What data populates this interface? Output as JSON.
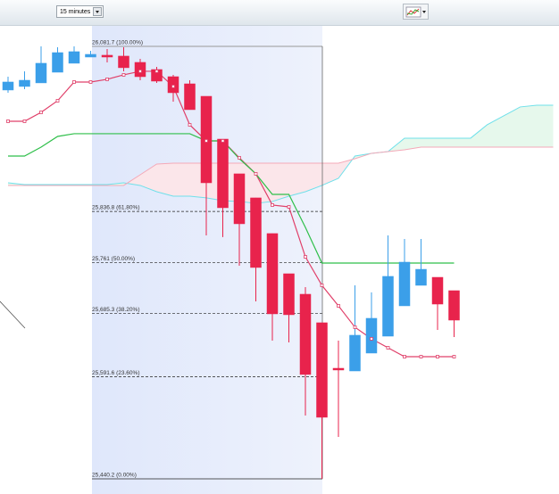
{
  "toolbar": {
    "interval": "15 minutes"
  },
  "chart_data": {
    "type": "candlestick",
    "ylim": [
      25417.7,
      26113.4
    ],
    "up_color": "#3b9fe9",
    "down_color": "#e8234c",
    "candles": {
      "open": [
        26016.9,
        26022.2,
        26027.5,
        26043.3,
        26056.6,
        26065.8,
        26068.5,
        26067.2,
        26057.9,
        26047.3,
        26036.7,
        26026.1,
        26007.6,
        25944.1,
        25892.6,
        25856.9,
        25804.0,
        25744.4,
        25714.0,
        25671.7,
        25604.2,
        25600.2,
        25626.7,
        25651.8,
        25696.8,
        25727.2,
        25739.1,
        25719.3
      ],
      "high": [
        26036.7,
        26044.7,
        26081.7,
        26080.4,
        26081.7,
        26075.1,
        26077.7,
        26080.4,
        26063.2,
        26051.3,
        26039.4,
        26031.4,
        26007.6,
        25944.1,
        25892.6,
        25856.9,
        25804.0,
        25744.4,
        25724.6,
        25671.7,
        25645.2,
        25727.2,
        25716.7,
        25801.3,
        25796.0,
        25796.0,
        25739.1,
        25719.3
      ],
      "low": [
        26012.9,
        26018.2,
        26027.5,
        26043.3,
        26056.6,
        26065.8,
        26057.9,
        26044.7,
        26031.4,
        26027.5,
        25999.7,
        25987.8,
        25801.3,
        25798.7,
        25756.3,
        25703.4,
        25645.2,
        25642.6,
        25534.1,
        25440.2,
        25502.4,
        25600.2,
        25626.7,
        25651.8,
        25696.8,
        25727.2,
        25661.1,
        25650.5
      ],
      "close": [
        26028.8,
        26031.4,
        26056.6,
        26072.4,
        26073.8,
        26069.8,
        26065.8,
        26050.0,
        26036.7,
        26030.1,
        26012.9,
        25987.8,
        25879.3,
        25842.3,
        25818.5,
        25753.7,
        25684.9,
        25683.6,
        25595.0,
        25531.5,
        25601.6,
        25653.2,
        25678.3,
        25740.5,
        25761.6,
        25751.0,
        25699.4,
        25675.6
      ]
    },
    "lines": [
      {
        "color": "#e0406a",
        "markers": true,
        "values": [
          25970.6,
          25970.6,
          25983.8,
          26001.0,
          26028.8,
          26028.8,
          26032.8,
          26039.4,
          26044.7,
          26044.7,
          26022.2,
          25965.3,
          25941.5,
          25941.5,
          25916.4,
          25892.6,
          25846.3,
          25843.6,
          25769.5,
          25727.2,
          25696.8,
          25665.1,
          25647.9,
          25634.6,
          25621.4,
          25621.4,
          25621.4,
          25621.4
        ]
      },
      {
        "color": "#2fbf4a",
        "markers": false,
        "values": [
          25919.0,
          25919.0,
          25932.2,
          25948.1,
          25952.1,
          25952.1,
          25952.1,
          25952.1,
          25952.1,
          25952.1,
          25952.1,
          25952.1,
          25941.5,
          25941.5,
          25915.0,
          25892.6,
          25862.1,
          25862.1,
          25813.2,
          25760.3,
          25760.3,
          25760.3,
          25760.3,
          25760.3,
          25760.3,
          25760.3,
          25760.3,
          25760.3
        ]
      }
    ],
    "cloud": {
      "span_a_color": "#6fe0ea",
      "span_b_color": "#f4a9b8",
      "up_fill": "#e6f8ec",
      "down_fill": "#fbe6ea",
      "span_a": [
        25879.3,
        25876.7,
        25876.7,
        25876.7,
        25876.7,
        25876.7,
        25876.7,
        25879.3,
        25875.4,
        25866.1,
        25859.5,
        25859.5,
        25856.9,
        25852.9,
        25851.6,
        25848.9,
        25851.6,
        25859.5,
        25866.1,
        25875.4,
        25885.9,
        25919.0,
        25923.0,
        25925.6,
        25945.5,
        25945.5,
        25945.5,
        25945.5,
        25945.5,
        25965.3,
        25978.5,
        25991.8,
        25994.4,
        25994.4
      ],
      "span_b": [
        25875.4,
        25875.4,
        25875.4,
        25875.4,
        25875.4,
        25875.4,
        25875.4,
        25875.4,
        25891.2,
        25907.1,
        25908.4,
        25908.4,
        25908.4,
        25908.4,
        25908.4,
        25908.4,
        25908.4,
        25908.4,
        25908.4,
        25908.4,
        25908.4,
        25915.0,
        25923.0,
        25925.6,
        25928.3,
        25932.2,
        25932.2,
        25932.2,
        25932.2,
        25932.2,
        25932.2,
        25932.2,
        25932.2,
        25932.2
      ]
    },
    "fib_levels": [
      {
        "value": 26081.7,
        "label": "26,081.7 (100.00%)"
      },
      {
        "value": 25836.8,
        "label": "25,836.8 (61.80%)"
      },
      {
        "value": 25761,
        "label": "25,761 (50.00%)"
      },
      {
        "value": 25685.3,
        "label": "25,685.3 (38.20%)"
      },
      {
        "value": 25591.6,
        "label": "25,591.6 (23.60%)"
      },
      {
        "value": 25440.2,
        "label": "25,440.2 (0.00%)"
      }
    ]
  }
}
